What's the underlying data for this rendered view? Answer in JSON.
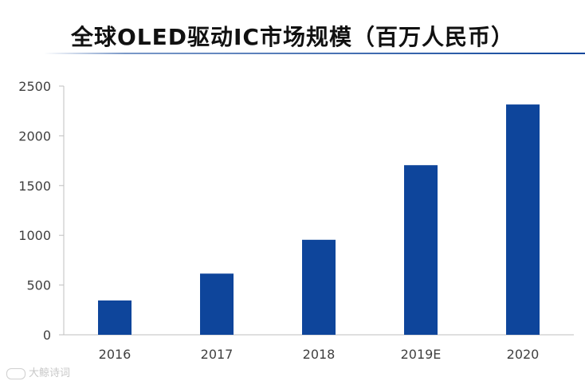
{
  "chart_data": {
    "type": "bar",
    "title": "全球OLED驱动IC市场规模（百万人民币）",
    "categories": [
      "2016",
      "2017",
      "2018",
      "2019E",
      "2020"
    ],
    "values": [
      345,
      615,
      955,
      1705,
      2315
    ],
    "ylim": [
      0,
      2500
    ],
    "yticks": [
      0,
      500,
      1000,
      1500,
      2000,
      2500
    ],
    "xlabel": "",
    "ylabel": "",
    "grid": false,
    "legend": "none",
    "bar_color": "#0e459b"
  },
  "watermark": {
    "text": "大鲸诗词"
  },
  "colors": {
    "accent": "#0e459b",
    "axis": "#bfbfbf",
    "text": "#404040"
  }
}
